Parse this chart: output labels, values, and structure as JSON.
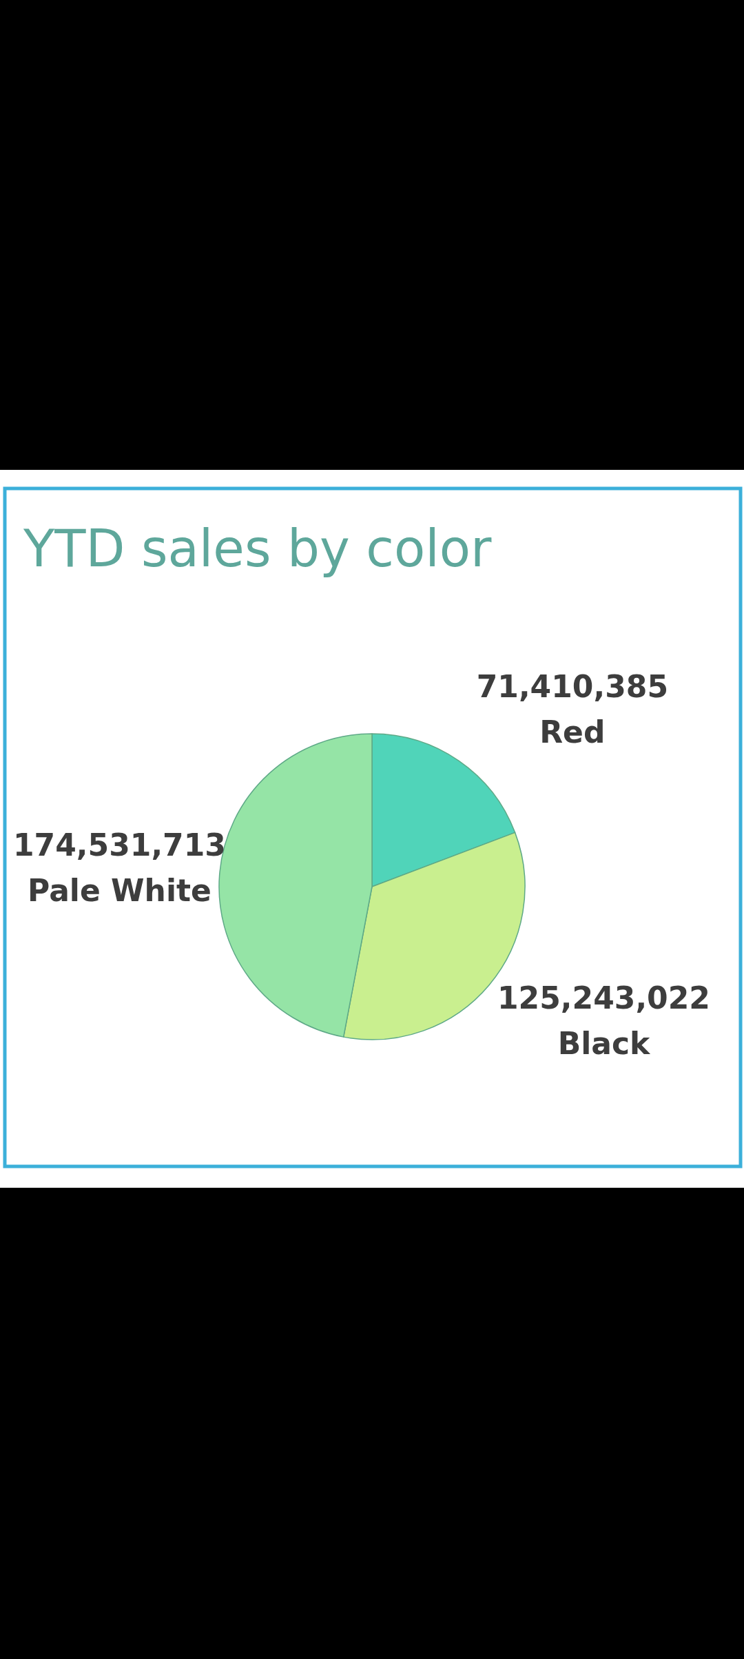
{
  "chart_data": {
    "type": "pie",
    "title": "YTD sales by color",
    "categories": [
      "Red",
      "Black",
      "Pale White"
    ],
    "values": [
      71410385,
      125243022,
      174531713
    ],
    "value_labels": [
      "71,410,385",
      "125,243,022",
      "174,531,713"
    ],
    "colors": [
      "#50d4b9",
      "#c9ef8f",
      "#95e4a6"
    ]
  }
}
